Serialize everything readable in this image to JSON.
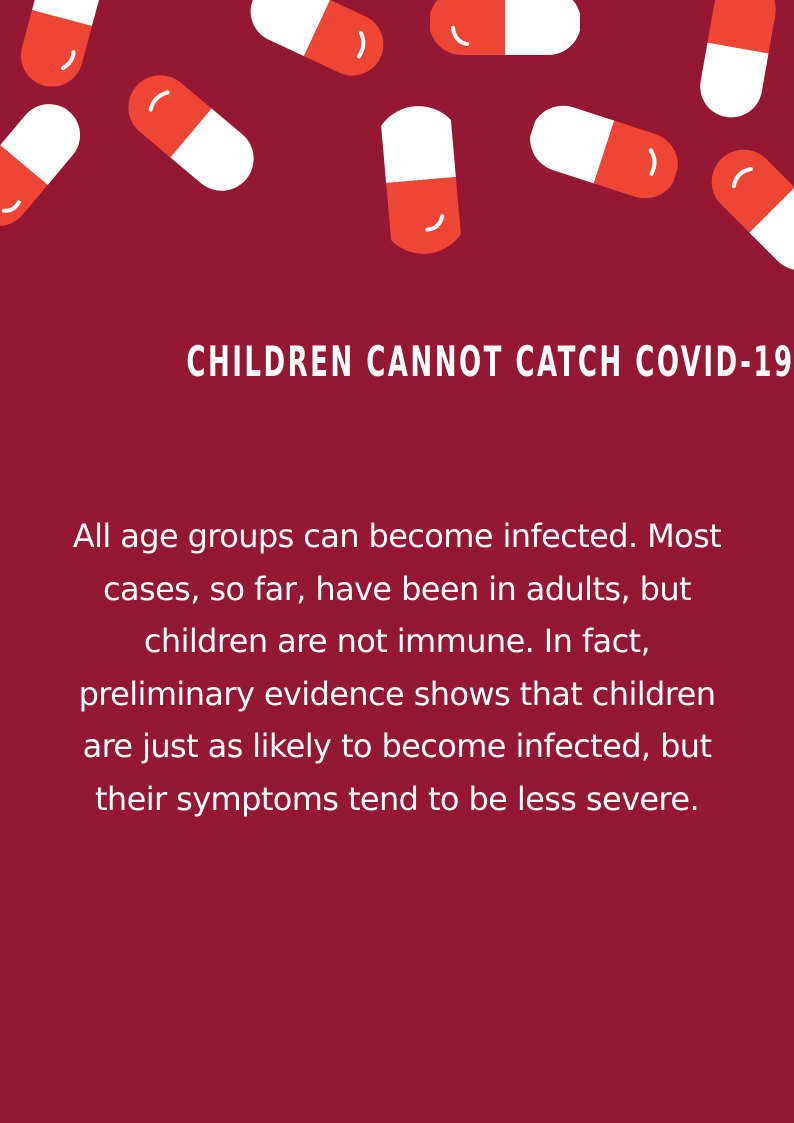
{
  "colors": {
    "background": "#941834",
    "pill_red": "#ee4535",
    "pill_white": "#ffffff",
    "text": "#ffffff"
  },
  "decoration": {
    "icon": "capsule-pill-icon"
  },
  "headline": "CHILDREN CANNOT CATCH COVID-19",
  "body": "All age groups can become infected. Most cases, so far, have been in adults, but children are not immune. In fact, preliminary evidence shows that children are just as likely to become infected, but their symptoms tend to be less severe."
}
